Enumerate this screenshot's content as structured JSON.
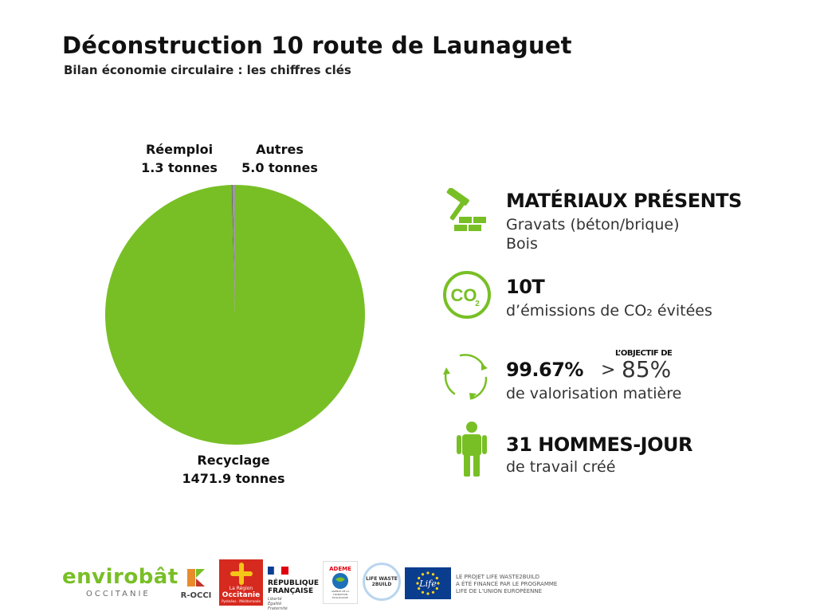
{
  "title": "Déconstruction 10 route de Launaguet",
  "subtitle": "Bilan économie circulaire : les chiffres clés",
  "chart_data": {
    "type": "pie",
    "unit": "tonnes",
    "slices": [
      {
        "name": "Recyclage",
        "value": 1471.9,
        "label": "1471.9 tonnes",
        "color": "#78bf25"
      },
      {
        "name": "Réemploi",
        "value": 1.3,
        "label": "1.3 tonnes",
        "color": "#4a4a4a"
      },
      {
        "name": "Autres",
        "value": 5.0,
        "label": "5.0 tonnes",
        "color": "#9a9a9a"
      }
    ]
  },
  "stats": {
    "materials": {
      "heading": "MATÉRIAUX PRÉSENTS",
      "line1": "Gravats (béton/brique)",
      "line2": "Bois",
      "icon": "hammer-bricks-icon"
    },
    "co2": {
      "heading": "10T",
      "line1": "d’émissions de CO₂ évitées",
      "icon": "co2-icon",
      "icon_text": "CO",
      "icon_sub": "2"
    },
    "valorisation": {
      "heading": "99.67%",
      "gt": ">",
      "target": "85%",
      "objective_label": "L’OBJECTIF DE",
      "line1": "de valorisation matière",
      "icon": "recycle-arrows-icon"
    },
    "jobs": {
      "heading": "31 HOMMES-JOUR",
      "line1": "de travail créé",
      "icon": "person-icon"
    }
  },
  "accent_color": "#78bf25",
  "footer": {
    "envirobat": "envirobât",
    "envirobat_sub": "OCCITANIE",
    "rocci": "R-OCCI",
    "region": "La Région",
    "occitanie": "Occitanie",
    "region_sub": "Pyrénées · Méditerranée",
    "republique1": "RÉPUBLIQUE",
    "republique2": "FRANÇAISE",
    "devise1": "Liberté",
    "devise2": "Égalité",
    "devise3": "Fraternité",
    "ademe": "ADEME",
    "ademe_sub1": "AGENCE DE LA",
    "ademe_sub2": "TRANSITION",
    "ademe_sub3": "ÉCOLOGIQUE",
    "lifewaste": "LIFE WASTE",
    "lifewaste2": "2BUILD",
    "life": "Life",
    "eu_line1": "LE PROJET LIFE WASTE2BUILD",
    "eu_line2": "A ÉTÉ FINANCÉ PAR LE PROGRAMME",
    "eu_line3": "LIFE DE L’UNION EUROPÉENNE"
  }
}
